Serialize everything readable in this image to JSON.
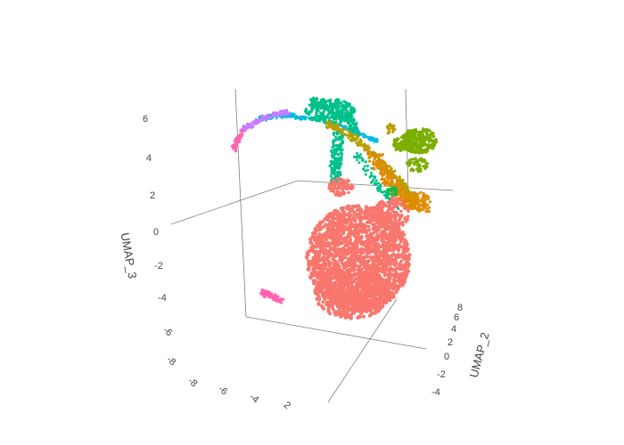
{
  "chart_data": {
    "type": "scatter",
    "projection": "3d",
    "grid": false,
    "legend": "none",
    "axes": {
      "z": {
        "label": "UMAP_3",
        "ticks": [
          "6",
          "4",
          "2",
          "0",
          "-2",
          "-4"
        ]
      },
      "y": {
        "label": "UMAP_2",
        "ticks": [
          "8",
          "6",
          "4",
          "2",
          "0",
          "-2",
          "-4"
        ]
      },
      "x": {
        "label": "",
        "ticks": [
          "-6",
          "-8",
          "-8",
          "-6",
          "-4",
          "2"
        ]
      }
    },
    "series": [
      {
        "color": "#F8766D",
        "note": "large main cluster"
      },
      {
        "color": "#00C08B",
        "note": "arching upper cluster"
      },
      {
        "color": "#00BAE0",
        "note": "thin arc"
      },
      {
        "color": "#C77CFF",
        "note": "arc end"
      },
      {
        "color": "#FF64B0",
        "note": "arc tip and small isolated cluster"
      },
      {
        "color": "#7CAE00",
        "note": "upper-right cluster"
      },
      {
        "color": "#DE8C00",
        "note": "right edge cluster"
      },
      {
        "color": "#B79F00",
        "note": "olive diagonal band"
      },
      {
        "color": "#00BF4C",
        "note": "small green group"
      }
    ]
  }
}
